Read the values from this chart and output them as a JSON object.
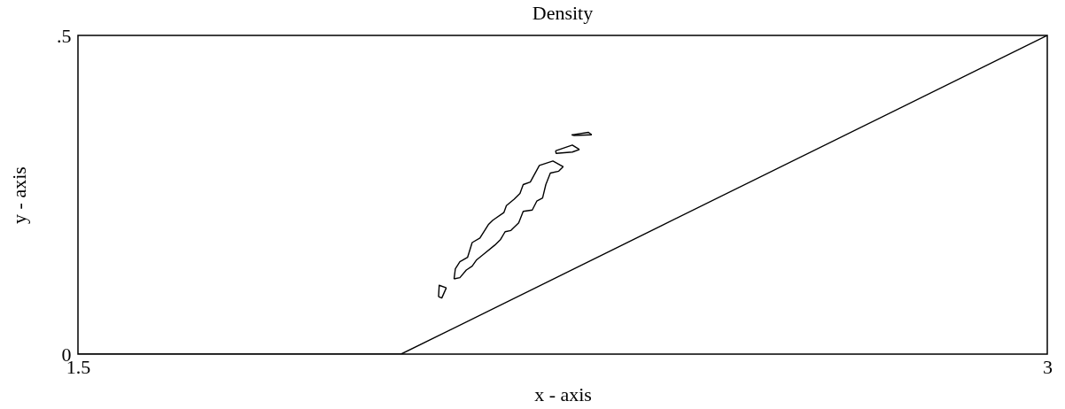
{
  "chart_data": {
    "type": "line",
    "title": "Density",
    "xlabel": "x - axis",
    "ylabel": "y - axis",
    "xlim": [
      1.5,
      3
    ],
    "ylim": [
      0,
      0.5
    ],
    "xticks": [
      1.5,
      3
    ],
    "yticks": [
      0,
      {
        "value": 0.5,
        "label": ".5"
      }
    ],
    "grid": false,
    "marker": "none",
    "line_style": "solid",
    "series": [
      {
        "color": "#000000",
        "x": [
          1.5,
          2.0,
          3.0
        ],
        "values": [
          0,
          0,
          0.5
        ]
      },
      {
        "color": "#000000",
        "x": [
          2.082,
          2.084,
          2.091,
          2.103,
          2.11,
          2.122,
          2.135,
          2.142,
          2.159,
          2.163,
          2.175,
          2.184,
          2.189,
          2.2,
          2.214,
          2.235,
          2.251
        ],
        "values": [
          0.118,
          0.134,
          0.145,
          0.152,
          0.175,
          0.182,
          0.203,
          0.21,
          0.222,
          0.233,
          0.243,
          0.252,
          0.266,
          0.27,
          0.296,
          0.303,
          0.294
        ]
      },
      {
        "color": "#000000",
        "x": [
          2.082,
          2.091,
          2.101,
          2.11,
          2.117,
          2.128,
          2.145,
          2.154,
          2.161,
          2.17,
          2.182,
          2.189,
          2.203,
          2.21,
          2.219,
          2.224,
          2.231,
          2.244,
          2.251
        ],
        "values": [
          0.118,
          0.12,
          0.132,
          0.138,
          0.148,
          0.157,
          0.171,
          0.18,
          0.192,
          0.194,
          0.206,
          0.224,
          0.226,
          0.24,
          0.245,
          0.266,
          0.284,
          0.287,
          0.294
        ]
      },
      {
        "color": "#000000",
        "x": [
          2.058,
          2.059,
          2.07
        ],
        "values": [
          0.09,
          0.108,
          0.104
        ]
      },
      {
        "color": "#000000",
        "x": [
          2.058,
          2.063,
          2.07
        ],
        "values": [
          0.09,
          0.088,
          0.104
        ]
      },
      {
        "color": "#000000",
        "x": [
          2.239,
          2.265,
          2.276
        ],
        "values": [
          0.319,
          0.328,
          0.321
        ]
      },
      {
        "color": "#000000",
        "x": [
          2.239,
          2.24,
          2.265,
          2.276
        ],
        "values": [
          0.319,
          0.315,
          0.317,
          0.321
        ]
      },
      {
        "color": "#000000",
        "x": [
          2.264,
          2.29,
          2.295
        ],
        "values": [
          0.344,
          0.348,
          0.344
        ]
      },
      {
        "color": "#000000",
        "x": [
          2.264,
          2.268,
          2.295
        ],
        "values": [
          0.344,
          0.343,
          0.344
        ]
      }
    ]
  }
}
